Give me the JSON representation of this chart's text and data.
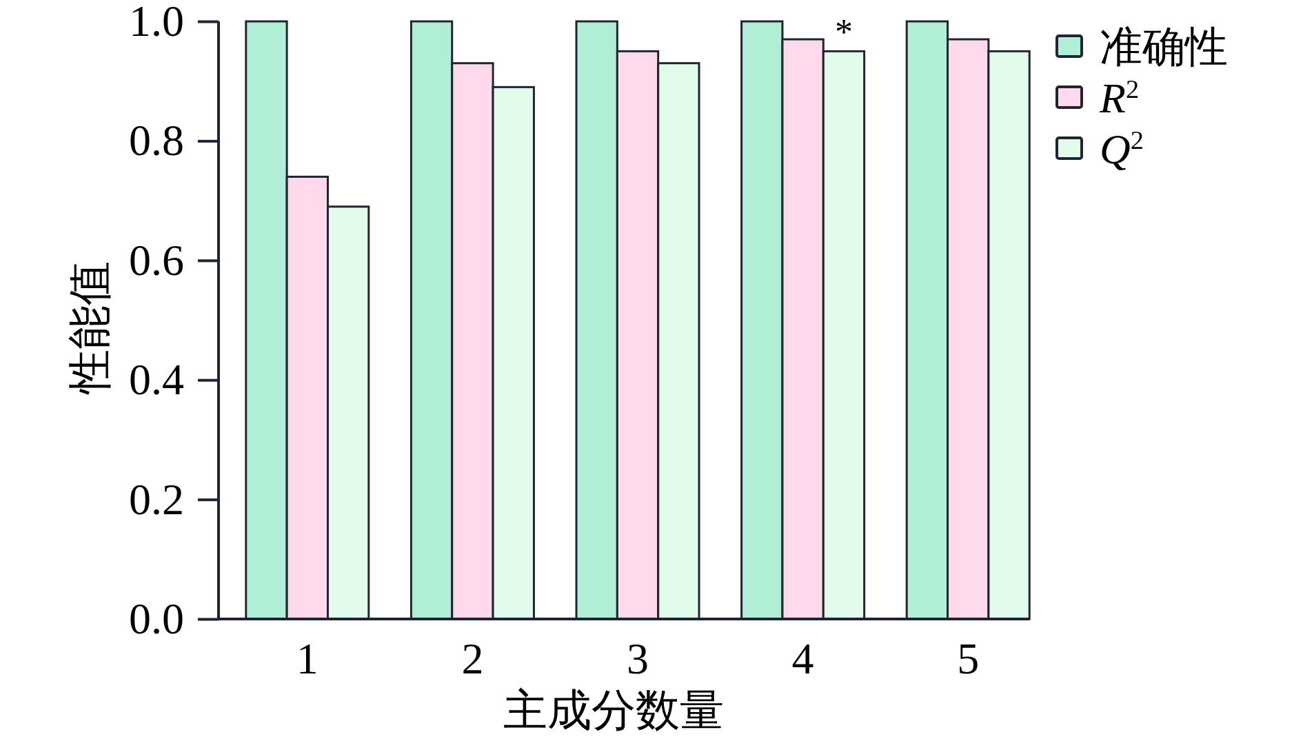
{
  "chart_data": {
    "type": "bar",
    "xlabel": "主成分数量",
    "ylabel": "性能值",
    "categories": [
      "1",
      "2",
      "3",
      "4",
      "5"
    ],
    "series": [
      {
        "name": "准确性",
        "color": "#b1eed6",
        "values": [
          1.0,
          1.0,
          1.0,
          1.0,
          1.0
        ]
      },
      {
        "name": "R$^{2}$",
        "color": "#fdd9ea",
        "values": [
          0.74,
          0.93,
          0.95,
          0.97,
          0.97
        ]
      },
      {
        "name": "Q$^{2}$",
        "color": "#e3fbeb",
        "values": [
          0.69,
          0.89,
          0.93,
          0.95,
          0.95
        ]
      }
    ],
    "ylim": [
      0,
      1
    ],
    "yticks": [
      {
        "value": 0,
        "label": "0.0"
      },
      {
        "value": 0.2,
        "label": "0.2"
      },
      {
        "value": 0.4,
        "label": "0.4"
      },
      {
        "value": 0.6,
        "label": "0.6"
      },
      {
        "value": 0.8,
        "label": "0.8"
      },
      {
        "value": 1,
        "label": "1.0"
      }
    ],
    "annotations": [
      "*"
    ],
    "grid": false,
    "legend": "top right"
  }
}
